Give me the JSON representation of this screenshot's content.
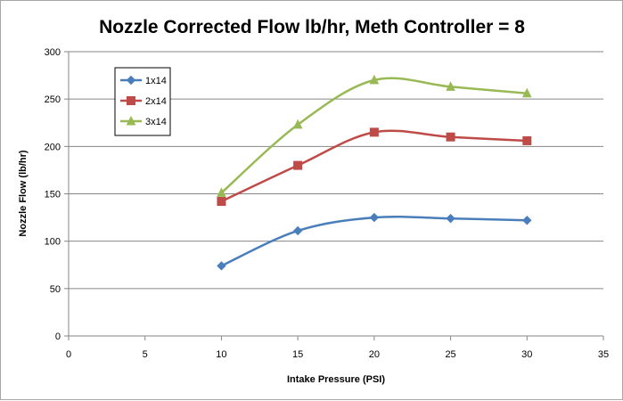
{
  "chart_data": {
    "type": "line",
    "title": "Nozzle Corrected Flow lb/hr, Meth Controller = 8",
    "xlabel": "Intake Pressure (PSI)",
    "ylabel": "Nozzle Flow (lb/hr)",
    "xlim": [
      0,
      35
    ],
    "ylim": [
      0,
      300
    ],
    "xticks": [
      0,
      5,
      10,
      15,
      20,
      25,
      30,
      35
    ],
    "yticks": [
      0,
      50,
      100,
      150,
      200,
      250,
      300
    ],
    "grid": "horizontal major gridlines",
    "legend_position": "top-left",
    "smoothed": true,
    "x": [
      10,
      15,
      20,
      25,
      30
    ],
    "series": [
      {
        "name": "1x14",
        "color": "#4a7ebb",
        "marker": "diamond",
        "values": [
          74,
          111,
          125,
          124,
          122
        ]
      },
      {
        "name": "2x14",
        "color": "#be4b48",
        "marker": "square",
        "values": [
          142,
          180,
          215,
          210,
          206
        ]
      },
      {
        "name": "3x14",
        "color": "#98b954",
        "marker": "triangle",
        "values": [
          151,
          223,
          270,
          263,
          256
        ]
      }
    ]
  }
}
